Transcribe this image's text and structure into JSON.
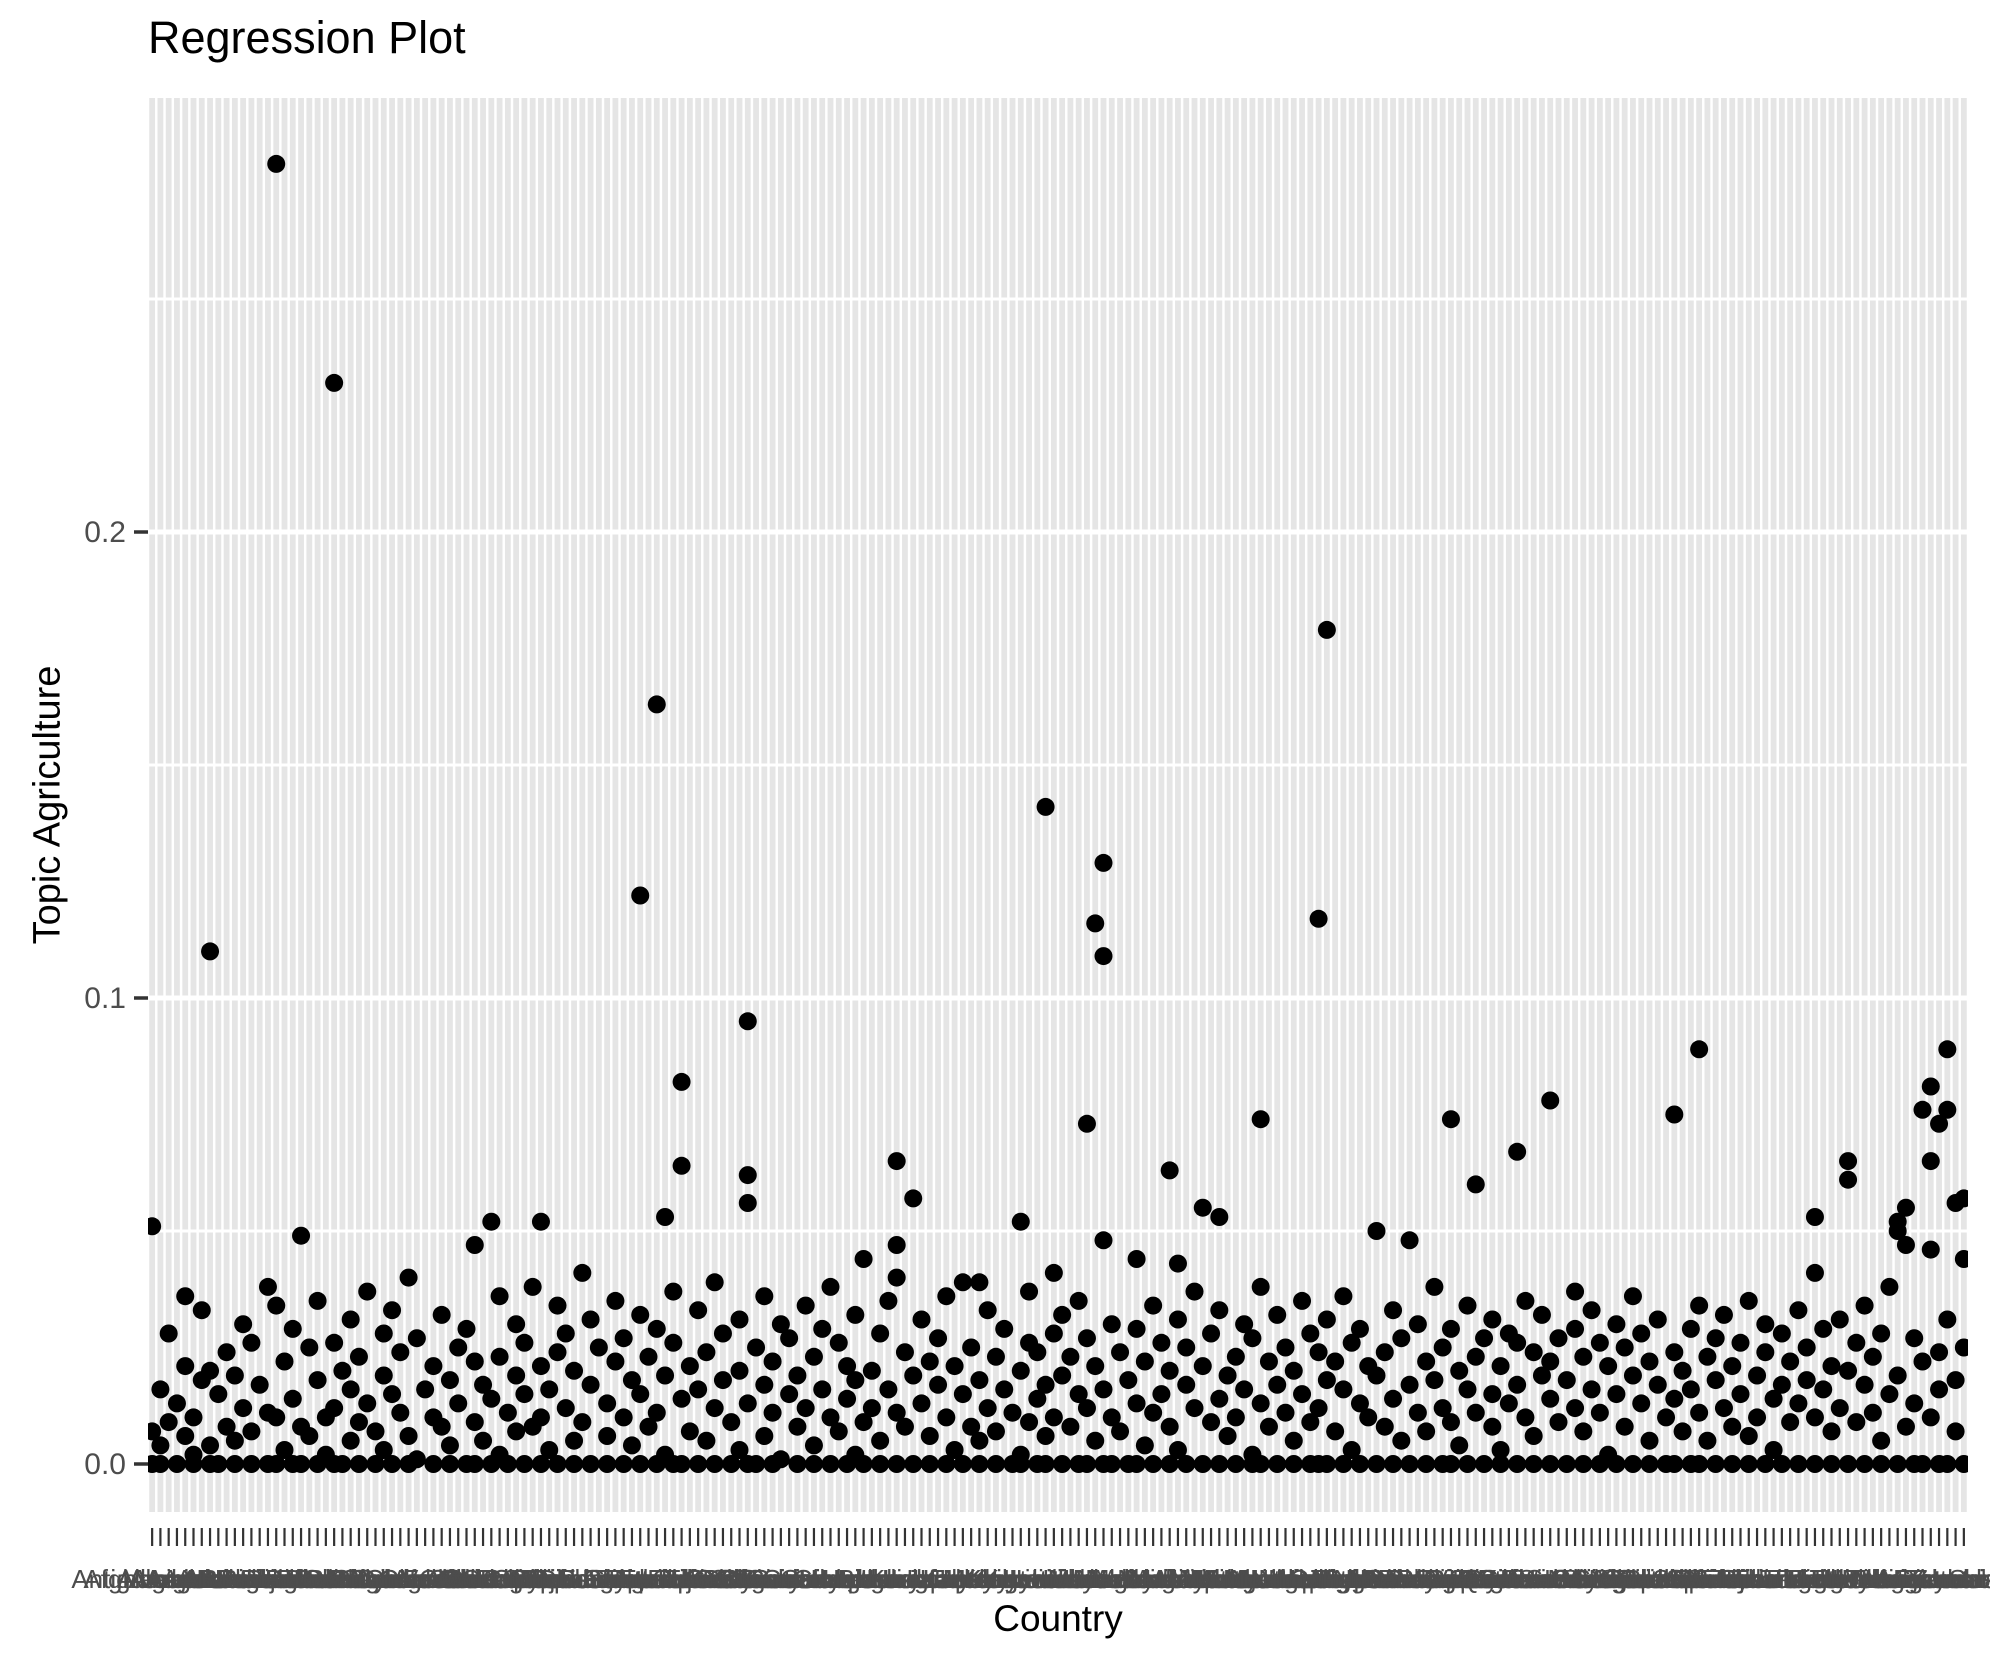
{
  "page": {
    "background": "#ffffff"
  },
  "chart_data": {
    "type": "scatter",
    "title": "Regression Plot",
    "xlabel": "Country",
    "ylabel": "Topic Agriculture",
    "legend": "none",
    "grid": {
      "vertical_stripes": true,
      "stripe_color": "#e5e5e5",
      "hline_color": "#ffffff"
    },
    "point": {
      "color": "#000000",
      "radius": 9
    },
    "colors": {
      "axis_text": "#4d4d4d",
      "tick": "#333333",
      "title": "#000000"
    },
    "ylim": [
      -0.0103,
      0.2931
    ],
    "y_ticks": [
      {
        "label": "0.0",
        "value": 0.0
      },
      {
        "label": "0.1",
        "value": 0.1
      },
      {
        "label": "0.2",
        "value": 0.2
      }
    ],
    "y_minor": [
      0.05,
      0.15,
      0.25
    ],
    "x_categories": [
      "Afghanistan",
      "Albania",
      "Algeria",
      "Andorra",
      "Angola",
      "Antigua and Barbuda",
      "Argentina",
      "Armenia",
      "Aruba",
      "Australia",
      "Austria",
      "Azerbaijan",
      "Bahamas",
      "Bahrain",
      "Bangladesh",
      "Barbados",
      "Belarus",
      "Belgium",
      "Belize",
      "Benin",
      "Bermuda",
      "Bhutan",
      "Bolivia",
      "Bosnia and Herzegovina",
      "Botswana",
      "Brazil",
      "Brunei",
      "Bulgaria",
      "Burkina Faso",
      "Burundi",
      "Cabo Verde",
      "Cambodia",
      "Cameroon",
      "Canada",
      "Cayman Islands",
      "Central African Republic",
      "Chad",
      "Channel Islands",
      "Chile",
      "China",
      "Colombia",
      "Comoros",
      "Congo",
      "Costa Rica",
      "Cote d'Ivoire",
      "Croatia",
      "Cuba",
      "Curacao",
      "Cyprus",
      "Czechia",
      "Denmark",
      "Djibouti",
      "Dominica",
      "Dominican Republic",
      "DR Congo",
      "Ecuador",
      "Egypt",
      "El Salvador",
      "Equatorial Guinea",
      "Eritrea",
      "Estonia",
      "Eswatini",
      "Ethiopia",
      "Faroe Islands",
      "Fiji",
      "Finland",
      "France",
      "French Guiana",
      "French Polynesia",
      "Gabon",
      "Gambia",
      "Georgia",
      "Germany",
      "Ghana",
      "Gibraltar",
      "Greece",
      "Greenland",
      "Grenada",
      "Guam",
      "Guadeloupe",
      "Guatemala",
      "Guinea",
      "Guinea-Bissau",
      "Guyana",
      "Haiti",
      "Honduras",
      "Hong Kong",
      "Hungary",
      "Iceland",
      "India",
      "Indonesia",
      "Iran",
      "Iraq",
      "Ireland",
      "Isle of Man",
      "Israel",
      "Italy",
      "Jamaica",
      "Japan",
      "Jersey",
      "Jordan",
      "Kazakhstan",
      "Kenya",
      "Kiribati",
      "Kosovo",
      "Kuwait",
      "Kyrgyzstan",
      "Laos",
      "Latvia",
      "Lebanon",
      "Lesotho",
      "Liberia",
      "Libya",
      "Liechtenstein",
      "Lithuania",
      "Luxembourg",
      "Macao",
      "Madagascar",
      "Malawi",
      "Malaysia",
      "Maldives",
      "Mali",
      "Malta",
      "Marshall Islands",
      "Martinique",
      "Mauritania",
      "Mauritius",
      "Mayotte",
      "Mexico",
      "Micronesia",
      "Moldova",
      "Monaco",
      "Mongolia",
      "Montenegro",
      "Morocco",
      "Mozambique",
      "Myanmar",
      "Namibia",
      "Nauru",
      "Nepal",
      "Netherlands",
      "New Caledonia",
      "New Zealand",
      "Nicaragua",
      "Niger",
      "Nigeria",
      "Niue",
      "North Korea",
      "North Macedonia",
      "Northern Mariana Islands",
      "Norway",
      "Oman",
      "Pakistan",
      "Palau",
      "Panama",
      "Papua New Guinea",
      "Paraguay",
      "Peru",
      "Philippines",
      "Poland",
      "Portugal",
      "Puerto Rico",
      "Qatar",
      "Reunion",
      "Romania",
      "Russia",
      "Rwanda",
      "Saint Kitts and Nevis",
      "Saint Lucia",
      "Saint Martin",
      "Saint Vincent and the Grenadines",
      "Samoa",
      "San Marino",
      "Sao Tome and Principe",
      "Saudi Arabia",
      "Senegal",
      "Serbia",
      "Seychelles",
      "Sierra Leone",
      "Singapore",
      "Slovakia",
      "Slovenia",
      "Solomon Islands",
      "Somalia",
      "South Africa",
      "South Korea",
      "South Sudan",
      "Spain",
      "Sri Lanka",
      "Sudan",
      "Suriname",
      "Sweden",
      "Switzerland",
      "Syria",
      "Taiwan",
      "Tajikistan",
      "Tanzania",
      "Thailand",
      "Timor-Leste",
      "Togo",
      "Tonga",
      "Trinidad and Tobago",
      "Tunisia",
      "Turkey",
      "Turkmenistan",
      "Tuvalu",
      "Uganda",
      "Ukraine",
      "United Arab Emirates",
      "United Kingdom",
      "United States",
      "Uruguay",
      "Uzbekistan",
      "Vanuatu",
      "Venezuela",
      "Vietnam",
      "Western Sahara",
      "Yemen",
      "Zambia",
      "Zimbabwe"
    ],
    "values": [
      [
        0.051,
        0.007,
        0
      ],
      [
        0,
        0.004,
        0.016
      ],
      [
        0.009,
        0.028
      ],
      [
        0,
        0.013
      ],
      [
        0.006,
        0.021,
        0.036
      ],
      [
        0,
        0.002,
        0.01
      ],
      [
        0.018,
        0.033
      ],
      [
        0.11,
        0.02,
        0.004,
        0
      ],
      [
        0,
        0.015
      ],
      [
        0.024,
        0.008
      ],
      [
        0,
        0.005,
        0.019
      ],
      [
        0.012,
        0.03
      ],
      [
        0,
        0.007,
        0.026
      ],
      [
        0.017
      ],
      [
        0,
        0.011,
        0.038
      ],
      [
        0.279,
        0.034,
        0.01,
        0
      ],
      [
        0.003,
        0.022
      ],
      [
        0,
        0.014,
        0.029
      ],
      [
        0.049,
        0.008,
        0
      ],
      [
        0.025,
        0.006
      ],
      [
        0,
        0.018,
        0.035
      ],
      [
        0.01,
        0.002
      ],
      [
        0.232,
        0.026,
        0,
        0.012
      ],
      [
        0,
        0.02
      ],
      [
        0.031,
        0.016,
        0.005
      ],
      [
        0,
        0.009,
        0.023
      ],
      [
        0.037,
        0.013
      ],
      [
        0,
        0.007
      ],
      [
        0.019,
        0.028,
        0.003
      ],
      [
        0,
        0.015,
        0.033
      ],
      [
        0.011,
        0.024
      ],
      [
        0,
        0.006,
        0.04
      ],
      [
        0.027,
        0.001
      ],
      [
        0.016
      ],
      [
        0,
        0.01,
        0.021
      ],
      [
        0.032,
        0.008
      ],
      [
        0,
        0.018,
        0.004
      ],
      [
        0.013,
        0.025
      ],
      [
        0,
        0.029
      ],
      [
        0.047,
        0.009,
        0.022,
        0
      ],
      [
        0.005,
        0.017
      ],
      [
        0.052,
        0,
        0.014
      ],
      [
        0.023,
        0.036,
        0.002
      ],
      [
        0,
        0.011
      ],
      [
        0.03,
        0.007,
        0.019
      ],
      [
        0,
        0.026,
        0.015
      ],
      [
        0.008,
        0.038
      ],
      [
        0.052,
        0.021,
        0,
        0.01
      ],
      [
        0.016,
        0.003
      ],
      [
        0,
        0.024,
        0.034
      ],
      [
        0.012,
        0.028
      ],
      [
        0,
        0.005,
        0.02
      ],
      [
        0.009,
        0.041
      ],
      [
        0,
        0.017,
        0.031
      ],
      [
        0.025
      ],
      [
        0,
        0.013,
        0.006
      ],
      [
        0.022,
        0.035
      ],
      [
        0,
        0.01,
        0.027
      ],
      [
        0.004,
        0.018
      ],
      [
        0.122,
        0.032,
        0,
        0.015
      ],
      [
        0.008,
        0.023
      ],
      [
        0.163,
        0,
        0.011,
        0.029
      ],
      [
        0.053,
        0.019,
        0.002
      ],
      [
        0,
        0.026,
        0.037
      ],
      [
        0.082,
        0.064,
        0.014,
        0
      ],
      [
        0.007,
        0.021
      ],
      [
        0,
        0.033,
        0.016
      ],
      [
        0.024,
        0.005
      ],
      [
        0,
        0.012,
        0.039
      ],
      [
        0.028,
        0.018
      ],
      [
        0,
        0.009
      ],
      [
        0.02,
        0.031,
        0.003
      ],
      [
        0.095,
        0.062,
        0.056,
        0.013,
        0
      ],
      [
        0,
        0.025
      ],
      [
        0.017,
        0.036,
        0.006
      ],
      [
        0,
        0.022,
        0.011
      ],
      [
        0.03,
        0.001
      ],
      [
        0.015,
        0.027
      ],
      [
        0,
        0.008,
        0.019
      ],
      [
        0.034,
        0.012
      ],
      [
        0,
        0.023,
        0.004
      ],
      [
        0.016,
        0.029
      ],
      [
        0,
        0.01,
        0.038
      ],
      [
        0.026,
        0.007
      ],
      [
        0,
        0.014,
        0.021
      ],
      [
        0.032,
        0.018,
        0.002
      ],
      [
        0.044,
        0,
        0.009
      ],
      [
        0.02,
        0.012
      ],
      [
        0,
        0.028,
        0.005
      ],
      [
        0.035,
        0.016
      ],
      [
        0.065,
        0.047,
        0.04,
        0.011,
        0
      ],
      [
        0.024,
        0.008
      ],
      [
        0.057,
        0,
        0.019
      ],
      [
        0.013,
        0.031
      ],
      [
        0,
        0.006,
        0.022
      ],
      [
        0.027,
        0.017
      ],
      [
        0,
        0.01,
        0.036
      ],
      [
        0.021,
        0.003
      ],
      [
        0.039,
        0,
        0.015
      ],
      [
        0.025,
        0.008
      ],
      [
        0.039,
        0.018,
        0,
        0.005
      ],
      [
        0.012,
        0.033
      ],
      [
        0,
        0.023,
        0.007
      ],
      [
        0.029,
        0.016
      ],
      [
        0,
        0.011
      ],
      [
        0.052,
        0.02,
        0.002,
        0
      ],
      [
        0.026,
        0.037,
        0.009
      ],
      [
        0,
        0.014,
        0.024
      ],
      [
        0.141,
        0.017,
        0,
        0.006
      ],
      [
        0.041,
        0.028,
        0.01
      ],
      [
        0,
        0.019,
        0.032
      ],
      [
        0.008,
        0.023
      ],
      [
        0,
        0.015,
        0.035
      ],
      [
        0.073,
        0.012,
        0,
        0.027
      ],
      [
        0.116,
        0.021,
        0.005
      ],
      [
        0.129,
        0.109,
        0.048,
        0.016,
        0
      ],
      [
        0,
        0.01,
        0.03
      ],
      [
        0.024,
        0.007
      ],
      [
        0,
        0.018
      ],
      [
        0.044,
        0.013,
        0.029,
        0
      ],
      [
        0.022,
        0.004
      ],
      [
        0,
        0.034,
        0.011
      ],
      [
        0.026,
        0.015
      ],
      [
        0.063,
        0,
        0.008,
        0.02
      ],
      [
        0.043,
        0.031,
        0.003
      ],
      [
        0,
        0.017,
        0.025
      ],
      [
        0.012,
        0.037
      ],
      [
        0.055,
        0.021,
        0
      ],
      [
        0.009,
        0.028
      ],
      [
        0.053,
        0,
        0.014,
        0.033
      ],
      [
        0.019,
        0.006
      ],
      [
        0,
        0.023,
        0.01
      ],
      [
        0.03,
        0.016
      ],
      [
        0,
        0.027,
        0.002
      ],
      [
        0.074,
        0.038,
        0.013,
        0
      ],
      [
        0.022,
        0.008
      ],
      [
        0,
        0.017,
        0.032
      ],
      [
        0.011,
        0.025
      ],
      [
        0,
        0.005,
        0.02
      ],
      [
        0.035,
        0.015
      ],
      [
        0,
        0.009,
        0.028
      ],
      [
        0.117,
        0.024,
        0,
        0.012
      ],
      [
        0.179,
        0.031,
        0.018,
        0
      ],
      [
        0.007,
        0.022
      ],
      [
        0,
        0.016,
        0.036
      ],
      [
        0.026,
        0.003
      ],
      [
        0,
        0.013,
        0.029
      ],
      [
        0.021,
        0.01
      ],
      [
        0.05,
        0,
        0.019
      ],
      [
        0.008,
        0.024
      ],
      [
        0,
        0.033,
        0.014
      ],
      [
        0.027,
        0.005
      ],
      [
        0.048,
        0.017,
        0
      ],
      [
        0.011,
        0.03
      ],
      [
        0,
        0.022,
        0.007
      ],
      [
        0.038,
        0.018
      ],
      [
        0,
        0.012,
        0.025
      ],
      [
        0.074,
        0.029,
        0.009,
        0
      ],
      [
        0.02,
        0.004
      ],
      [
        0,
        0.016,
        0.034
      ],
      [
        0.06,
        0.023,
        0.011
      ],
      [
        0,
        0.027
      ],
      [
        0.015,
        0.008,
        0.031
      ],
      [
        0,
        0.021,
        0.003
      ],
      [
        0.028,
        0.013
      ],
      [
        0.067,
        0,
        0.017,
        0.026
      ],
      [
        0.01,
        0.035
      ],
      [
        0,
        0.024,
        0.006
      ],
      [
        0.019,
        0.032
      ],
      [
        0.078,
        0.014,
        0,
        0.022
      ],
      [
        0.009,
        0.027
      ],
      [
        0,
        0.018
      ],
      [
        0.029,
        0.012,
        0.037
      ],
      [
        0,
        0.007,
        0.023
      ],
      [
        0.016,
        0.033
      ],
      [
        0,
        0.011,
        0.026
      ],
      [
        0.021,
        0.002
      ],
      [
        0,
        0.03,
        0.015
      ],
      [
        0.025,
        0.008
      ],
      [
        0,
        0.019,
        0.036
      ],
      [
        0.013,
        0.028
      ],
      [
        0,
        0.005,
        0.022
      ],
      [
        0.017,
        0.031
      ],
      [
        0,
        0.01
      ],
      [
        0.075,
        0.024,
        0.014,
        0
      ],
      [
        0.02,
        0.007
      ],
      [
        0,
        0.029,
        0.016
      ],
      [
        0.089,
        0.034,
        0,
        0.011
      ],
      [
        0.023,
        0.005
      ],
      [
        0,
        0.018,
        0.027
      ],
      [
        0.012,
        0.032
      ],
      [
        0,
        0.008,
        0.021
      ],
      [
        0.026,
        0.015
      ],
      [
        0,
        0.035,
        0.006
      ],
      [
        0.019,
        0.01
      ],
      [
        0,
        0.024,
        0.03
      ],
      [
        0.014,
        0.003
      ],
      [
        0,
        0.028,
        0.017
      ],
      [
        0.022,
        0.009
      ],
      [
        0,
        0.013,
        0.033
      ],
      [
        0.025,
        0.018
      ],
      [
        0.053,
        0.041,
        0,
        0.01
      ],
      [
        0.016,
        0.029
      ],
      [
        0,
        0.021,
        0.007
      ],
      [
        0.031,
        0.012
      ],
      [
        0.065,
        0.061,
        0.02,
        0
      ],
      [
        0.009,
        0.026
      ],
      [
        0,
        0.017,
        0.034
      ],
      [
        0.023,
        0.011
      ],
      [
        0,
        0.028,
        0.005
      ],
      [
        0.015,
        0.038
      ],
      [
        0.052,
        0.05,
        0,
        0.019
      ],
      [
        0.055,
        0.047,
        0.008
      ],
      [
        0,
        0.027,
        0.013
      ],
      [
        0.076,
        0.022,
        0
      ],
      [
        0.081,
        0.065,
        0.046,
        0.01
      ],
      [
        0.073,
        0,
        0.024,
        0.016
      ],
      [
        0.089,
        0.076,
        0.031,
        0
      ],
      [
        0.056,
        0.018,
        0.007
      ],
      [
        0.057,
        0.044,
        0,
        0.025
      ]
    ]
  }
}
